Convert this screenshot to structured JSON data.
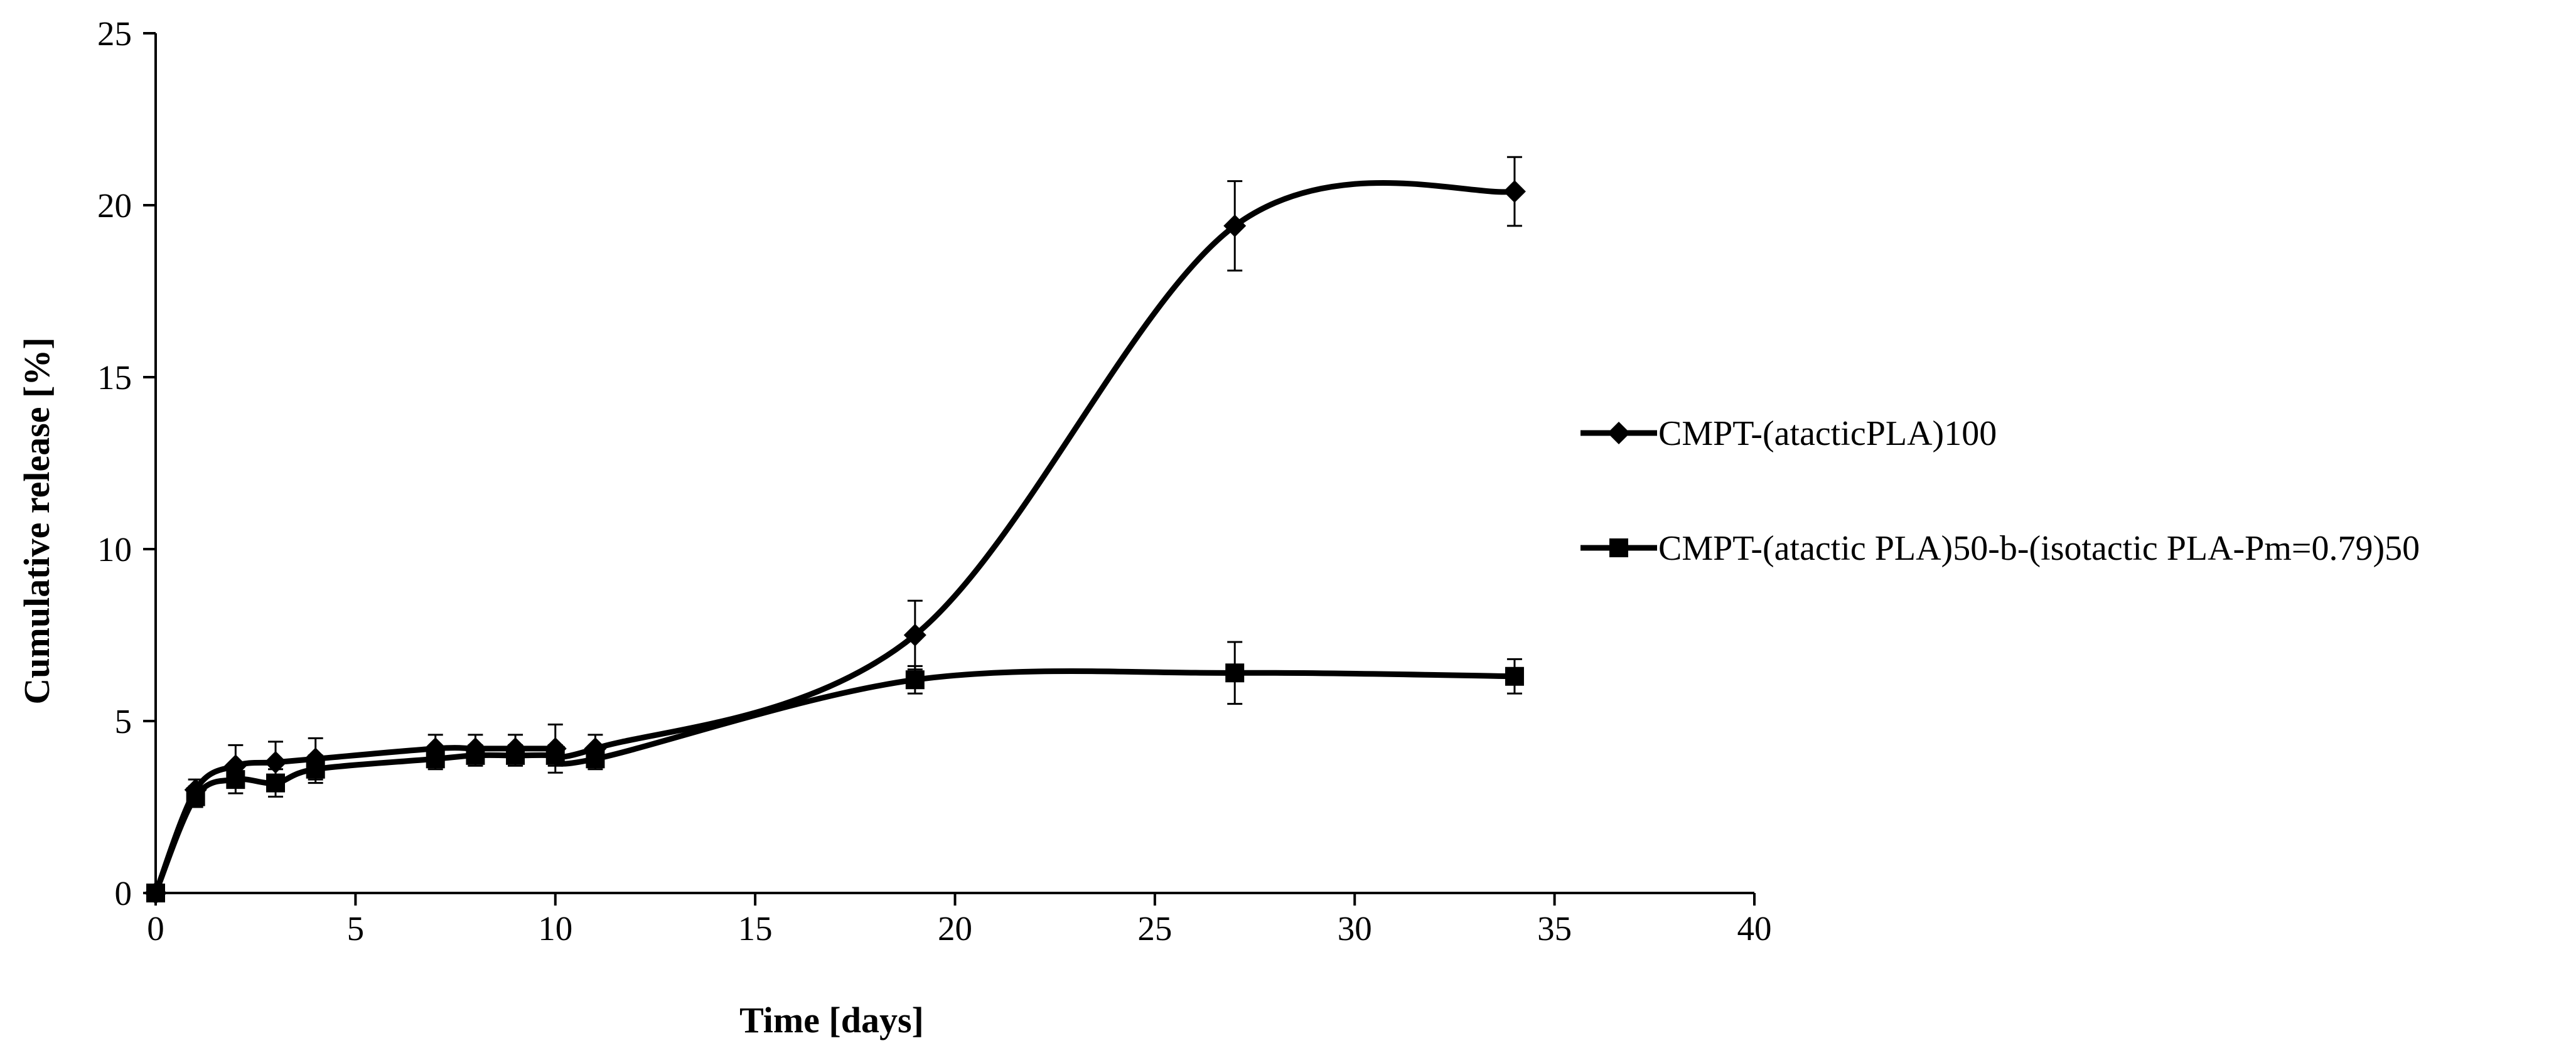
{
  "chart_data": {
    "type": "line",
    "title": "",
    "xlabel": "Time [days]",
    "ylabel": "Cumulative release [%]",
    "xlim": [
      0,
      40
    ],
    "ylim": [
      0,
      25
    ],
    "xticks": [
      "0",
      "5",
      "10",
      "15",
      "20",
      "25",
      "30",
      "35",
      "40"
    ],
    "yticks": [
      "0",
      "5",
      "10",
      "15",
      "20",
      "25"
    ],
    "grid": false,
    "legend_position": "right",
    "line_color": "#000000",
    "series": [
      {
        "name": "CMPT-(atacticPLA)100",
        "marker": "diamond",
        "x": [
          0,
          1,
          2,
          3,
          4,
          7,
          8,
          9,
          10,
          11,
          19,
          27,
          34
        ],
        "y": [
          0,
          3.0,
          3.7,
          3.8,
          3.9,
          4.2,
          4.2,
          4.2,
          4.2,
          4.2,
          7.5,
          19.4,
          20.4
        ],
        "error": [
          0,
          0.3,
          0.6,
          0.6,
          0.6,
          0.4,
          0.4,
          0.4,
          0.7,
          0.4,
          1.0,
          1.3,
          1.0
        ]
      },
      {
        "name": "CMPT-(atactic PLA)50-b-(isotactic PLA-Pm=0.79)50",
        "marker": "square",
        "x": [
          0,
          1,
          2,
          3,
          4,
          7,
          8,
          9,
          10,
          11,
          19,
          27,
          34
        ],
        "y": [
          0,
          2.8,
          3.3,
          3.2,
          3.6,
          3.9,
          4.0,
          4.0,
          4.0,
          3.9,
          6.2,
          6.4,
          6.3
        ],
        "error": [
          0,
          0.3,
          0.4,
          0.4,
          0.4,
          0.3,
          0.3,
          0.3,
          0.3,
          0.3,
          0.4,
          0.9,
          0.5
        ]
      }
    ]
  }
}
